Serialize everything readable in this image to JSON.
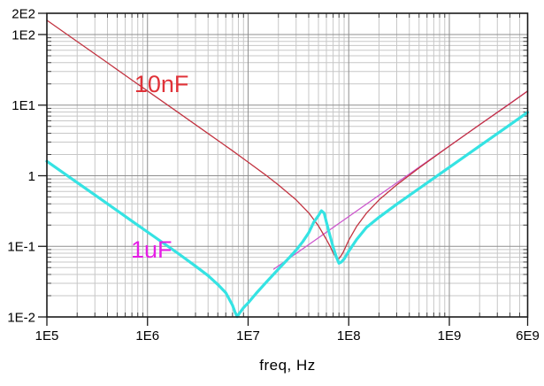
{
  "colors": {
    "background": "#ffffff",
    "frame": "#1a1a1a",
    "grid_major": "#8f8f8f",
    "grid_minor": "#c7c7c7",
    "tick_text": "#000000"
  },
  "chart_data": {
    "type": "line",
    "title": "",
    "x_axis": {
      "label": "freq, Hz",
      "scale": "log",
      "min": 100000.0,
      "max": 6000000000.0,
      "ticks": [
        {
          "value": 100000.0,
          "label": "1E5"
        },
        {
          "value": 1000000.0,
          "label": "1E6"
        },
        {
          "value": 10000000.0,
          "label": "1E7"
        },
        {
          "value": 100000000.0,
          "label": "1E8"
        },
        {
          "value": 1000000000.0,
          "label": "1E9"
        },
        {
          "value": 6000000000.0,
          "label": "6E9"
        }
      ]
    },
    "y_axis": {
      "label": "",
      "scale": "log",
      "min": 0.01,
      "max": 200,
      "ticks": [
        {
          "value": 200,
          "label": "2E2"
        },
        {
          "value": 100,
          "label": "1E2"
        },
        {
          "value": 10,
          "label": "1E1"
        },
        {
          "value": 1,
          "label": "1"
        },
        {
          "value": 0.1,
          "label": "1E-1"
        },
        {
          "value": 0.01,
          "label": "1E-2"
        }
      ]
    },
    "grid": "major-and-minor",
    "legend": "inline-annotations",
    "series": [
      {
        "id": "esl-inductance-line",
        "color": "#cc55cc",
        "width": 1.3,
        "points": [
          [
            18000000.0,
            0.0475
          ],
          [
            50000000.0,
            0.132
          ],
          [
            100000000.0,
            0.264
          ],
          [
            500000000.0,
            1.32
          ],
          [
            1000000000.0,
            2.64
          ],
          [
            6000000000.0,
            15.83
          ]
        ]
      },
      {
        "id": "10nF-capacitor",
        "color": "#c23340",
        "width": 1.3,
        "points": [
          [
            100000.0,
            159
          ],
          [
            200000.0,
            79.6
          ],
          [
            400000.0,
            39.8
          ],
          [
            700000.0,
            22.7
          ],
          [
            1000000.0,
            15.9
          ],
          [
            2000000.0,
            7.95
          ],
          [
            4000000.0,
            3.97
          ],
          [
            7000000.0,
            2.26
          ],
          [
            10000000.0,
            1.56
          ],
          [
            15000000.0,
            1.02
          ],
          [
            20000000.0,
            0.74
          ],
          [
            30000000.0,
            0.455
          ],
          [
            40000000.0,
            0.298
          ],
          [
            50000000.0,
            0.195
          ],
          [
            60000000.0,
            0.125
          ],
          [
            65000000.0,
            0.101
          ],
          [
            70000000.0,
            0.081
          ],
          [
            74000000.0,
            0.071
          ],
          [
            78000000.0,
            0.065
          ],
          [
            82000000.0,
            0.07
          ],
          [
            87000000.0,
            0.08
          ],
          [
            92000000.0,
            0.094
          ],
          [
            100000000.0,
            0.122
          ],
          [
            120000000.0,
            0.192
          ],
          [
            150000000.0,
            0.296
          ],
          [
            200000000.0,
            0.455
          ],
          [
            300000000.0,
            0.742
          ],
          [
            500000000.0,
            1.29
          ],
          [
            1000000000.0,
            2.63
          ],
          [
            2000000000.0,
            5.27
          ],
          [
            4000000000.0,
            10.5
          ],
          [
            6000000000.0,
            15.8
          ]
        ]
      },
      {
        "id": "1uF-capacitor",
        "color": "#35e3e3",
        "width": 3.2,
        "points": [
          [
            100000.0,
            1.6
          ],
          [
            200000.0,
            0.8
          ],
          [
            400000.0,
            0.4
          ],
          [
            700000.0,
            0.228
          ],
          [
            1000000.0,
            0.16
          ],
          [
            2000000.0,
            0.08
          ],
          [
            3000000.0,
            0.0525
          ],
          [
            4000000.0,
            0.0385
          ],
          [
            5000000.0,
            0.0288
          ],
          [
            6000000.0,
            0.022
          ],
          [
            7000000.0,
            0.0146
          ],
          [
            7400000.0,
            0.0118
          ],
          [
            7800000.0,
            0.0101
          ],
          [
            8200000.0,
            0.0113
          ],
          [
            9000000.0,
            0.0135
          ],
          [
            10000000.0,
            0.0158
          ],
          [
            12000000.0,
            0.0215
          ],
          [
            15000000.0,
            0.0306
          ],
          [
            20000000.0,
            0.0476
          ],
          [
            25000000.0,
            0.0666
          ],
          [
            30000000.0,
            0.0885
          ],
          [
            35000000.0,
            0.117
          ],
          [
            40000000.0,
            0.156
          ],
          [
            45000000.0,
            0.221
          ],
          [
            50000000.0,
            0.272
          ],
          [
            53500000.0,
            0.32
          ],
          [
            57000000.0,
            0.295
          ],
          [
            60000000.0,
            0.22
          ],
          [
            64000000.0,
            0.155
          ],
          [
            70000000.0,
            0.098
          ],
          [
            75000000.0,
            0.072
          ],
          [
            80000000.0,
            0.0575
          ],
          [
            85000000.0,
            0.0605
          ],
          [
            90000000.0,
            0.066
          ],
          [
            100000000.0,
            0.085
          ],
          [
            120000000.0,
            0.125
          ],
          [
            150000000.0,
            0.185
          ],
          [
            200000000.0,
            0.258
          ],
          [
            300000000.0,
            0.395
          ],
          [
            500000000.0,
            0.658
          ],
          [
            1000000000.0,
            1.32
          ],
          [
            2000000000.0,
            2.64
          ],
          [
            4000000000.0,
            5.28
          ],
          [
            6000000000.0,
            7.92
          ]
        ]
      }
    ],
    "annotations": [
      {
        "text": "10nF",
        "color": "#e03238",
        "x": 740000.0,
        "y": 15.3
      },
      {
        "text": "1uF",
        "color": "#e51ee5",
        "x": 684000.0,
        "y": 0.069
      }
    ]
  }
}
